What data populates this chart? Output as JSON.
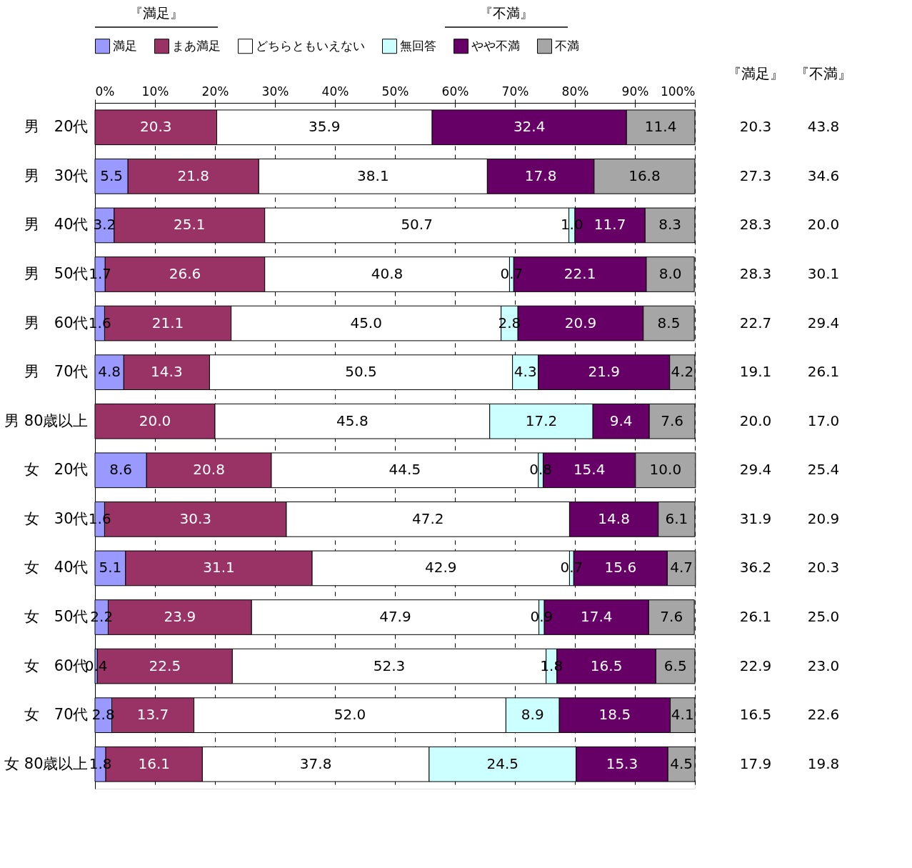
{
  "chart_data": {
    "type": "bar",
    "orientation": "horizontal",
    "stacked": true,
    "legend": "top",
    "grid": "x",
    "categories": [
      "男　20代",
      "男　30代",
      "男　40代",
      "男　50代",
      "男　60代",
      "男　70代",
      "男 80歳以上",
      "女　20代",
      "女　30代",
      "女　40代",
      "女　50代",
      "女　60代",
      "女　70代",
      "女 80歳以上"
    ],
    "series": [
      {
        "name": "満足",
        "color": "#9999ff",
        "values": [
          null,
          5.5,
          3.2,
          1.7,
          1.6,
          4.8,
          null,
          8.6,
          1.6,
          5.1,
          2.2,
          0.4,
          2.8,
          1.8
        ],
        "value_labels": [
          null,
          "5.5",
          "3.2",
          "1.7",
          "1.6",
          "4.8",
          null,
          "8.6",
          "1.6",
          "5.1",
          "2.2",
          "0.4",
          "2.8",
          "1.8"
        ]
      },
      {
        "name": "まあ満足",
        "color": "#993366",
        "values": [
          20.3,
          21.8,
          25.1,
          26.6,
          21.1,
          14.3,
          20.0,
          20.8,
          30.3,
          31.1,
          23.9,
          22.5,
          13.7,
          16.1
        ],
        "value_labels": [
          "20.3",
          "21.8",
          "25.1",
          "26.6",
          "21.1",
          "14.3",
          "20.0",
          "20.8",
          "30.3",
          "31.1",
          "23.9",
          "22.5",
          "13.7",
          "16.1"
        ]
      },
      {
        "name": "どちらともいえない",
        "color": "#ffffff",
        "values": [
          35.9,
          38.1,
          50.7,
          40.8,
          45.0,
          50.5,
          45.8,
          44.5,
          47.2,
          42.9,
          47.9,
          52.3,
          52.0,
          37.8
        ],
        "value_labels": [
          "35.9",
          "38.1",
          "50.7",
          "40.8",
          "45.0",
          "50.5",
          "45.8",
          "44.5",
          "47.2",
          "42.9",
          "47.9",
          "52.3",
          "52.0",
          "37.8"
        ]
      },
      {
        "name": "無回答",
        "color": "#ccffff",
        "values": [
          null,
          null,
          1.0,
          0.7,
          2.8,
          4.3,
          17.2,
          0.8,
          null,
          0.7,
          0.9,
          1.8,
          8.9,
          24.5
        ],
        "value_labels": [
          null,
          null,
          "1.0",
          "0.7",
          "2.8",
          "4.3",
          "17.2",
          "0.8",
          null,
          "0.7",
          "0.9",
          "1.8",
          "8.9",
          "24.5"
        ]
      },
      {
        "name": "やや不満",
        "color": "#660066",
        "values": [
          32.4,
          17.8,
          11.7,
          22.1,
          20.9,
          21.9,
          9.4,
          15.4,
          14.8,
          15.6,
          17.4,
          16.5,
          18.5,
          15.3
        ],
        "value_labels": [
          "32.4",
          "17.8",
          "11.7",
          "22.1",
          "20.9",
          "21.9",
          "9.4",
          "15.4",
          "14.8",
          "15.6",
          "17.4",
          "16.5",
          "18.5",
          "15.3"
        ]
      },
      {
        "name": "不満",
        "color": "#a6a6a6",
        "values": [
          11.4,
          16.8,
          8.3,
          8.0,
          8.5,
          4.2,
          7.6,
          10.0,
          6.1,
          4.7,
          7.6,
          6.5,
          4.1,
          4.5
        ],
        "value_labels": [
          "11.4",
          "16.8",
          "8.3",
          "8.0",
          "8.5",
          "4.2",
          "7.6",
          "10.0",
          "6.1",
          "4.7",
          "7.6",
          "6.5",
          "4.1",
          "4.5"
        ]
      }
    ],
    "xlim": [
      0,
      100
    ],
    "xticks": [
      {
        "value": 0,
        "label": "0%"
      },
      {
        "value": 10,
        "label": "10%"
      },
      {
        "value": 20,
        "label": "20%"
      },
      {
        "value": 30,
        "label": "30%"
      },
      {
        "value": 40,
        "label": "40%"
      },
      {
        "value": 50,
        "label": "50%"
      },
      {
        "value": 60,
        "label": "60%"
      },
      {
        "value": 70,
        "label": "70%"
      },
      {
        "value": 80,
        "label": "80%"
      },
      {
        "value": 90,
        "label": "90%"
      },
      {
        "value": 100,
        "label": "100%"
      }
    ],
    "annotations": [
      "『満足』",
      "『不満』",
      "『満足』",
      "20.3",
      "27.3",
      "28.3",
      "28.3",
      "22.7",
      "19.1",
      "20.0",
      "29.4",
      "31.9",
      "36.2",
      "26.1",
      "22.9",
      "16.5",
      "17.9",
      "『不満』",
      "43.8",
      "34.6",
      "20.0",
      "30.1",
      "29.4",
      "26.1",
      "17.0",
      "25.4",
      "20.9",
      "20.3",
      "25.0",
      "23.0",
      "22.6",
      "19.8"
    ]
  }
}
